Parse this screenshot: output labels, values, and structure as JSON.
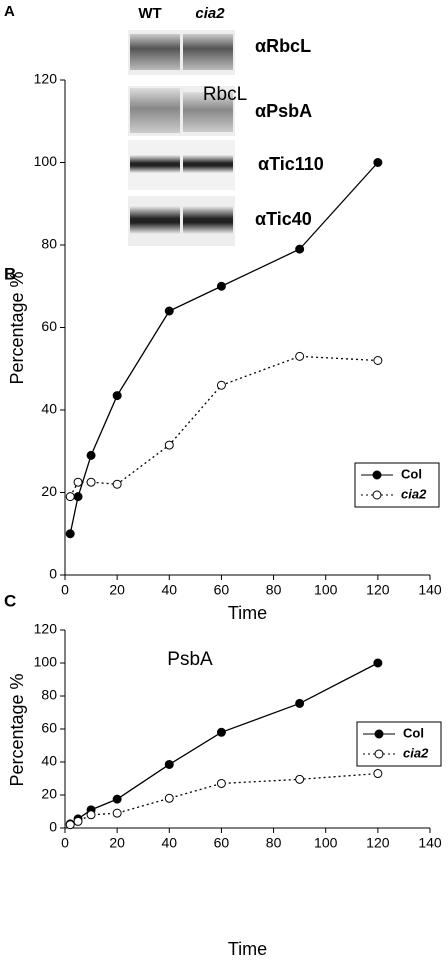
{
  "figure": {
    "panel": "A",
    "lanes": [
      "WT",
      "cia2"
    ],
    "blots": [
      "αRbcL",
      "αPsbA",
      "αTic110",
      "αTic40"
    ]
  },
  "chart_data": [
    {
      "type": "line",
      "panel": "B",
      "title": "RbcL",
      "xlabel": "Time",
      "ylabel": "Percentage %",
      "x": [
        2,
        5,
        10,
        20,
        40,
        60,
        90,
        120
      ],
      "series": [
        {
          "name": "Col",
          "color": "#000",
          "line_style": "solid",
          "marker_fill": "#000",
          "values": [
            10,
            19,
            29,
            43.5,
            64,
            70,
            79,
            100
          ]
        },
        {
          "name": "cia2",
          "color": "#000",
          "line_style": "dotted",
          "marker_fill": "#fff",
          "values": [
            19,
            22.5,
            22.5,
            22,
            31.5,
            46,
            53,
            52
          ]
        }
      ],
      "xlim": [
        0,
        140
      ],
      "ylim": [
        0,
        120
      ],
      "xticks": [
        0,
        20,
        40,
        60,
        80,
        100,
        120,
        140
      ],
      "yticks": [
        0,
        20,
        40,
        60,
        80,
        100,
        120
      ],
      "legend": "right"
    },
    {
      "type": "line",
      "panel": "C",
      "title": "PsbA",
      "xlabel": "Time",
      "ylabel": "Percentage %",
      "x": [
        2,
        5,
        10,
        20,
        40,
        60,
        90,
        120
      ],
      "series": [
        {
          "name": "Col",
          "color": "#000",
          "line_style": "solid",
          "marker_fill": "#000",
          "values": [
            2.5,
            5.5,
            11,
            17.5,
            38.5,
            58,
            75.5,
            100
          ]
        },
        {
          "name": "cia2",
          "color": "#000",
          "line_style": "dotted",
          "marker_fill": "#fff",
          "values": [
            2,
            4,
            8,
            9,
            18,
            27,
            29.5,
            33
          ]
        }
      ],
      "xlim": [
        0,
        140
      ],
      "ylim": [
        0,
        120
      ],
      "xticks": [
        0,
        20,
        40,
        60,
        80,
        100,
        120,
        140
      ],
      "yticks": [
        0,
        20,
        40,
        60,
        80,
        100,
        120
      ],
      "legend": "right"
    }
  ]
}
